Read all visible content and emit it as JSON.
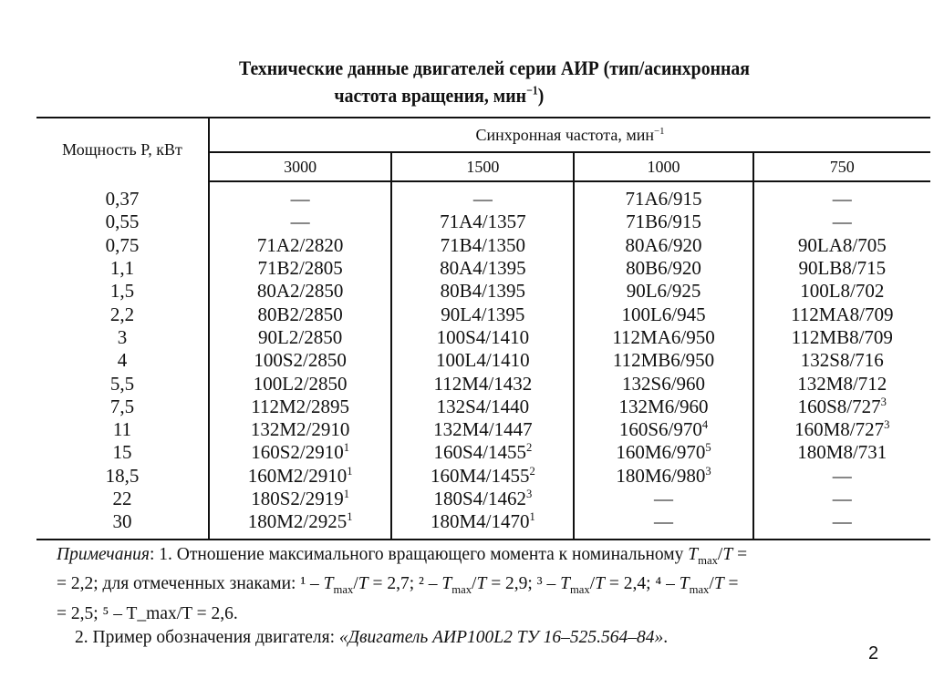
{
  "title": {
    "line1": "Технические данные двигателей серии АИР (тип/асинхронная",
    "line2": "частота вращения, мин",
    "line2_sup": "−1",
    "line2_end": ")"
  },
  "table": {
    "power_header": "Мощность P, кВт",
    "sync_header": "Синхронная частота, мин",
    "sync_header_sup": "−1",
    "freqs": [
      "3000",
      "1500",
      "1000",
      "750"
    ],
    "rows": [
      {
        "p": "0,37",
        "c": [
          {
            "v": "—"
          },
          {
            "v": "—"
          },
          {
            "v": "71A6/915"
          },
          {
            "v": "—"
          }
        ]
      },
      {
        "p": "0,55",
        "c": [
          {
            "v": "—"
          },
          {
            "v": "71A4/1357"
          },
          {
            "v": "71B6/915"
          },
          {
            "v": "—"
          }
        ]
      },
      {
        "p": "0,75",
        "c": [
          {
            "v": "71A2/2820"
          },
          {
            "v": "71B4/1350"
          },
          {
            "v": "80A6/920"
          },
          {
            "v": "90LA8/705"
          }
        ]
      },
      {
        "p": "1,1",
        "c": [
          {
            "v": "71B2/2805"
          },
          {
            "v": "80A4/1395"
          },
          {
            "v": "80B6/920"
          },
          {
            "v": "90LB8/715"
          }
        ]
      },
      {
        "p": "1,5",
        "c": [
          {
            "v": "80A2/2850"
          },
          {
            "v": "80B4/1395"
          },
          {
            "v": "90L6/925"
          },
          {
            "v": "100L8/702"
          }
        ]
      },
      {
        "p": "2,2",
        "c": [
          {
            "v": "80B2/2850"
          },
          {
            "v": "90L4/1395"
          },
          {
            "v": "100L6/945"
          },
          {
            "v": "112MA8/709"
          }
        ]
      },
      {
        "p": "3",
        "c": [
          {
            "v": "90L2/2850"
          },
          {
            "v": "100S4/1410"
          },
          {
            "v": "112MA6/950"
          },
          {
            "v": "112MB8/709"
          }
        ]
      },
      {
        "p": "4",
        "c": [
          {
            "v": "100S2/2850"
          },
          {
            "v": "100L4/1410"
          },
          {
            "v": "112MB6/950"
          },
          {
            "v": "132S8/716"
          }
        ]
      },
      {
        "p": "5,5",
        "c": [
          {
            "v": "100L2/2850"
          },
          {
            "v": "112M4/1432"
          },
          {
            "v": "132S6/960"
          },
          {
            "v": "132M8/712"
          }
        ]
      },
      {
        "p": "7,5",
        "c": [
          {
            "v": "112M2/2895"
          },
          {
            "v": "132S4/1440"
          },
          {
            "v": "132M6/960"
          },
          {
            "v": "160S8/727",
            "s": "3"
          }
        ]
      },
      {
        "p": "11",
        "c": [
          {
            "v": "132M2/2910"
          },
          {
            "v": "132M4/1447"
          },
          {
            "v": "160S6/970",
            "s": "4"
          },
          {
            "v": "160M8/727",
            "s": "3"
          }
        ]
      },
      {
        "p": "15",
        "c": [
          {
            "v": "160S2/2910",
            "s": "1"
          },
          {
            "v": "160S4/1455",
            "s": "2"
          },
          {
            "v": "160M6/970",
            "s": "5"
          },
          {
            "v": "180M8/731"
          }
        ]
      },
      {
        "p": "18,5",
        "c": [
          {
            "v": "160M2/2910",
            "s": "1"
          },
          {
            "v": "160M4/1455",
            "s": "2"
          },
          {
            "v": "180M6/980",
            "s": "3"
          },
          {
            "v": "—"
          }
        ]
      },
      {
        "p": "22",
        "c": [
          {
            "v": "180S2/2919",
            "s": "1"
          },
          {
            "v": "180S4/1462",
            "s": "3"
          },
          {
            "v": "—"
          },
          {
            "v": "—"
          }
        ]
      },
      {
        "p": "30",
        "c": [
          {
            "v": "180M2/2925",
            "s": "1"
          },
          {
            "v": "180M4/1470",
            "s": "1"
          },
          {
            "v": "—"
          },
          {
            "v": "—"
          }
        ]
      }
    ]
  },
  "notes": {
    "label": "Примечания",
    "line1": ": 1. Отношение максимального вращающего момента к номинальному T_max/T =",
    "line2": "= 2,2; для отмеченных знаками: ¹ – T_max/T = 2,7; ² – T_max/T = 2,9; ³ – T_max/T = 2,4; ⁴ – T_max/T =",
    "line3": "= 2,5; ⁵ – T_max/T = 2,6.",
    "line4_prefix": "2. Пример обозначения двигателя: ",
    "line4_example": "«Двигатель АИР100L2 ТУ 16–525.564–84»",
    "line4_end": "."
  },
  "page_number": "2"
}
